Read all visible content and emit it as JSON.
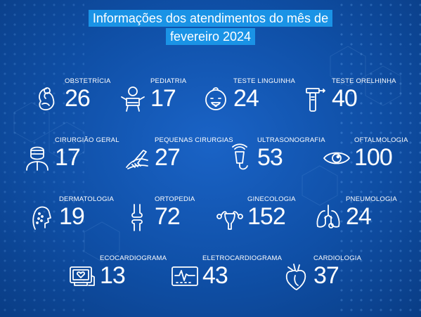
{
  "title": {
    "line1": "Informações dos atendimentos do mês de",
    "line2": "fevereiro 2024"
  },
  "items": [
    {
      "label": "OBSTETRÍCIA",
      "value": "26",
      "icon": "fetus-icon"
    },
    {
      "label": "PEDIATRIA",
      "value": "17",
      "icon": "baby-icon"
    },
    {
      "label": "TESTE LINGUINHA",
      "value": "24",
      "icon": "baby-face-icon"
    },
    {
      "label": "TESTE ORELHINHA",
      "value": "40",
      "icon": "otoscope-icon"
    },
    {
      "label": "CIRURGIÃO GERAL",
      "value": "17",
      "icon": "surgeon-icon"
    },
    {
      "label": "PEQUENAS CIRURGIAS",
      "value": "27",
      "icon": "surgical-hand-icon"
    },
    {
      "label": "ULTRASONOGRAFIA",
      "value": "53",
      "icon": "ultrasound-probe-icon"
    },
    {
      "label": "OFTALMOLOGIA",
      "value": "100",
      "icon": "eye-icon"
    },
    {
      "label": "DERMATOLOGIA",
      "value": "19",
      "icon": "face-skin-icon"
    },
    {
      "label": "ORTOPEDIA",
      "value": "72",
      "icon": "knee-bone-icon"
    },
    {
      "label": "GINECOLOGIA",
      "value": "152",
      "icon": "uterus-icon"
    },
    {
      "label": "PNEUMOLOGIA",
      "value": "24",
      "icon": "lungs-icon"
    },
    {
      "label": "ECOCARDIOGRAMA",
      "value": "13",
      "icon": "echo-monitor-icon"
    },
    {
      "label": "ELETROCARDIOGRAMA",
      "value": "43",
      "icon": "ecg-monitor-icon"
    },
    {
      "label": "CARDIOLOGIA",
      "value": "37",
      "icon": "heart-icon"
    }
  ]
}
